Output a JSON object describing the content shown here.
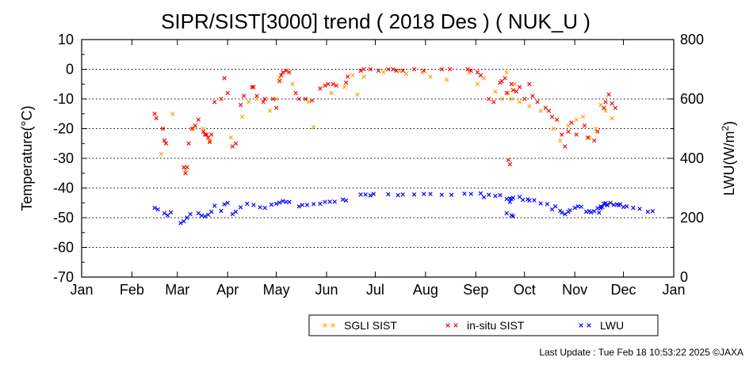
{
  "chart_data": {
    "type": "scatter",
    "title": "SIPR/SIST[3000] trend ( 2018 Des ) ( NUK_U )",
    "ylabel_left": "Temperature(°C)",
    "ylabel_right_main": "LWU(W/m",
    "ylabel_right_sup": "2",
    "ylabel_right_end": ")",
    "x_tick_labels": [
      "Jan",
      "Feb",
      "Mar",
      "Apr",
      "May",
      "Jun",
      "Jul",
      "Aug",
      "Sep",
      "Oct",
      "Nov",
      "Dec",
      "Jan"
    ],
    "y_left_range": [
      -70,
      10
    ],
    "y_left_ticks": [
      "10",
      "0",
      "-10",
      "-20",
      "-30",
      "-40",
      "-50",
      "-60",
      "-70"
    ],
    "y_right_range": [
      0,
      800
    ],
    "y_right_ticks": [
      "800",
      "600",
      "400",
      "200",
      "0"
    ],
    "x_unit": "day of year 2018",
    "gridlines": "dotted horizontal at each left tick",
    "legend_position": "bottom-center",
    "colors": {
      "sgli": "#ffa500",
      "insitu": "#ff0000",
      "lwu": "#0000ff"
    },
    "marker": "×",
    "series": [
      {
        "name": "SGLI SIST",
        "axis": "left",
        "points": [
          [
            49,
            -28.5
          ],
          [
            56,
            -15
          ],
          [
            64,
            -34
          ],
          [
            69,
            -20
          ],
          [
            75,
            -20
          ],
          [
            79,
            -24
          ],
          [
            92,
            -23
          ],
          [
            99,
            -16
          ],
          [
            103,
            -11
          ],
          [
            108,
            -10
          ],
          [
            116,
            -14
          ],
          [
            120,
            -10
          ],
          [
            122,
            -3
          ],
          [
            130,
            -5
          ],
          [
            140,
            -11
          ],
          [
            143,
            -19.5
          ],
          [
            154,
            -8
          ],
          [
            162,
            -6
          ],
          [
            167,
            -2
          ],
          [
            170,
            -8.5
          ],
          [
            174,
            -2.5
          ],
          [
            186,
            -1
          ],
          [
            196,
            -0.5
          ],
          [
            200,
            -1.5
          ],
          [
            210,
            -1
          ],
          [
            215,
            -2.5
          ],
          [
            225,
            -3.5
          ],
          [
            239,
            -1
          ],
          [
            244,
            -5
          ],
          [
            248,
            -3
          ],
          [
            255,
            -7.5
          ],
          [
            259,
            -10
          ],
          [
            262,
            -1
          ],
          [
            263,
            -8
          ],
          [
            265,
            -10
          ],
          [
            267,
            -5
          ],
          [
            270,
            -11
          ],
          [
            276,
            -12.5
          ],
          [
            283,
            -14
          ],
          [
            291,
            -20
          ],
          [
            295,
            -24
          ],
          [
            300,
            -19
          ],
          [
            305,
            -17
          ],
          [
            309,
            -16
          ],
          [
            313,
            -23
          ],
          [
            317,
            -20
          ],
          [
            320,
            -12
          ],
          [
            323,
            -14
          ],
          [
            327,
            -16.5
          ]
        ]
      },
      {
        "name": "in-situ SIST",
        "axis": "left",
        "points": [
          [
            45,
            -15
          ],
          [
            46,
            -16.5
          ],
          [
            50,
            -20
          ],
          [
            51,
            -24
          ],
          [
            52,
            -25
          ],
          [
            63,
            -33
          ],
          [
            64,
            -35
          ],
          [
            65,
            -33
          ],
          [
            66,
            -25
          ],
          [
            68,
            -20
          ],
          [
            70,
            -19
          ],
          [
            72,
            -17
          ],
          [
            75,
            -21
          ],
          [
            76,
            -22
          ],
          [
            77,
            -22
          ],
          [
            78,
            -23
          ],
          [
            79,
            -24.5
          ],
          [
            80,
            -22
          ],
          [
            82,
            -11
          ],
          [
            86,
            -10
          ],
          [
            88,
            -3
          ],
          [
            90,
            -8
          ],
          [
            93,
            -26
          ],
          [
            95,
            -25
          ],
          [
            98,
            -12
          ],
          [
            100,
            -9
          ],
          [
            105,
            -6
          ],
          [
            106,
            -6
          ],
          [
            108,
            -9
          ],
          [
            112,
            -11
          ],
          [
            113,
            -10
          ],
          [
            118,
            -10
          ],
          [
            120,
            -13
          ],
          [
            122,
            -4
          ],
          [
            123,
            -2
          ],
          [
            124,
            -1
          ],
          [
            126,
            -0.5
          ],
          [
            128,
            -1
          ],
          [
            132,
            -8
          ],
          [
            134,
            -10
          ],
          [
            138,
            -10
          ],
          [
            142,
            -10.5
          ],
          [
            147,
            -6.5
          ],
          [
            150,
            -5.5
          ],
          [
            152,
            -5
          ],
          [
            155,
            -5
          ],
          [
            157,
            -5.5
          ],
          [
            163,
            -4.5
          ],
          [
            164,
            -2.5
          ],
          [
            172,
            -0.5
          ],
          [
            174,
            0
          ],
          [
            178,
            0
          ],
          [
            183,
            -0.5
          ],
          [
            189,
            0
          ],
          [
            192,
            0
          ],
          [
            194,
            -0.5
          ],
          [
            198,
            -0.5
          ],
          [
            205,
            0
          ],
          [
            211,
            -0.5
          ],
          [
            222,
            0
          ],
          [
            227,
            0
          ],
          [
            238,
            0
          ],
          [
            240,
            -0.5
          ],
          [
            244,
            -1
          ],
          [
            246,
            -2
          ],
          [
            251,
            -10
          ],
          [
            254,
            -11
          ],
          [
            258,
            -4.5
          ],
          [
            259,
            -4
          ],
          [
            261,
            -3
          ],
          [
            262,
            -8
          ],
          [
            263,
            -30.5
          ],
          [
            264,
            -32
          ],
          [
            265,
            -5
          ],
          [
            266,
            -7
          ],
          [
            268,
            -7.5
          ],
          [
            270,
            -6
          ],
          [
            273,
            -10
          ],
          [
            276,
            -5
          ],
          [
            278,
            -9
          ],
          [
            281,
            -11
          ],
          [
            286,
            -13
          ],
          [
            288,
            -14
          ],
          [
            290,
            -16
          ],
          [
            293,
            -17
          ],
          [
            296,
            -22
          ],
          [
            298,
            -26
          ],
          [
            300,
            -21
          ],
          [
            302,
            -18
          ],
          [
            305,
            -22
          ],
          [
            310,
            -19
          ],
          [
            312,
            -23
          ],
          [
            316,
            -24
          ],
          [
            318,
            -21
          ],
          [
            322,
            -13
          ],
          [
            323,
            -11
          ],
          [
            325,
            -8.5
          ],
          [
            327,
            -11.5
          ],
          [
            329,
            -13
          ]
        ]
      },
      {
        "name": "LWU",
        "axis": "right",
        "points": [
          [
            45,
            233
          ],
          [
            47,
            228
          ],
          [
            51,
            215
          ],
          [
            53,
            208
          ],
          [
            55,
            218
          ],
          [
            61,
            182
          ],
          [
            63,
            188
          ],
          [
            65,
            200
          ],
          [
            67,
            212
          ],
          [
            72,
            215
          ],
          [
            74,
            207
          ],
          [
            76,
            204
          ],
          [
            78,
            210
          ],
          [
            80,
            220
          ],
          [
            82,
            240
          ],
          [
            86,
            223
          ],
          [
            88,
            245
          ],
          [
            90,
            250
          ],
          [
            93,
            212
          ],
          [
            95,
            220
          ],
          [
            98,
            235
          ],
          [
            102,
            247
          ],
          [
            106,
            243
          ],
          [
            110,
            235
          ],
          [
            113,
            233
          ],
          [
            117,
            244
          ],
          [
            120,
            247
          ],
          [
            122,
            251
          ],
          [
            124,
            256
          ],
          [
            126,
            253
          ],
          [
            128,
            253
          ],
          [
            134,
            238
          ],
          [
            136,
            243
          ],
          [
            139,
            243
          ],
          [
            143,
            246
          ],
          [
            147,
            247
          ],
          [
            150,
            253
          ],
          [
            153,
            254
          ],
          [
            156,
            254
          ],
          [
            161,
            261
          ],
          [
            163,
            258
          ],
          [
            172,
            278
          ],
          [
            175,
            278
          ],
          [
            178,
            275
          ],
          [
            180,
            280
          ],
          [
            189,
            279
          ],
          [
            195,
            276
          ],
          [
            198,
            278
          ],
          [
            205,
            278
          ],
          [
            211,
            280
          ],
          [
            215,
            280
          ],
          [
            222,
            277
          ],
          [
            228,
            277
          ],
          [
            236,
            281
          ],
          [
            240,
            280
          ],
          [
            246,
            282
          ],
          [
            248,
            269
          ],
          [
            251,
            277
          ],
          [
            255,
            273
          ],
          [
            258,
            276
          ],
          [
            262,
            263
          ],
          [
            264,
            253
          ],
          [
            265,
            263
          ],
          [
            266,
            267
          ],
          [
            270,
            270
          ],
          [
            272,
            260
          ],
          [
            275,
            262
          ],
          [
            276,
            258
          ],
          [
            279,
            259
          ],
          [
            283,
            248
          ],
          [
            287,
            246
          ],
          [
            290,
            228
          ],
          [
            292,
            238
          ],
          [
            295,
            223
          ],
          [
            296,
            217
          ],
          [
            298,
            212
          ],
          [
            300,
            220
          ],
          [
            301,
            225
          ],
          [
            304,
            233
          ],
          [
            306,
            238
          ],
          [
            308,
            237
          ],
          [
            311,
            220
          ],
          [
            313,
            222
          ],
          [
            314,
            218
          ],
          [
            316,
            222
          ],
          [
            318,
            232
          ],
          [
            320,
            238
          ],
          [
            322,
            247
          ],
          [
            324,
            242
          ],
          [
            326,
            250
          ],
          [
            328,
            243
          ],
          [
            330,
            245
          ],
          [
            331,
            242
          ],
          [
            332,
            245
          ],
          [
            334,
            236
          ],
          [
            336,
            238
          ],
          [
            340,
            233
          ],
          [
            344,
            230
          ],
          [
            349,
            220
          ],
          [
            352,
            222
          ],
          [
            262,
            215
          ],
          [
            264,
            265
          ],
          [
            265,
            208
          ],
          [
            266,
            205
          ],
          [
            319,
            217
          ],
          [
            320,
            232
          ],
          [
            321,
            236
          ],
          [
            322,
            247
          ],
          [
            323,
            249
          ],
          [
            324,
            244
          ]
        ]
      }
    ]
  },
  "legend": {
    "items": [
      {
        "label": "SGLI SIST",
        "color": "#ffa500"
      },
      {
        "label": "in-situ SIST",
        "color": "#ff0000"
      },
      {
        "label": "LWU",
        "color": "#0000ff"
      }
    ]
  },
  "footer": {
    "text": "Last Update : Tue Feb 18 10:53:22 2025  ©JAXA"
  }
}
